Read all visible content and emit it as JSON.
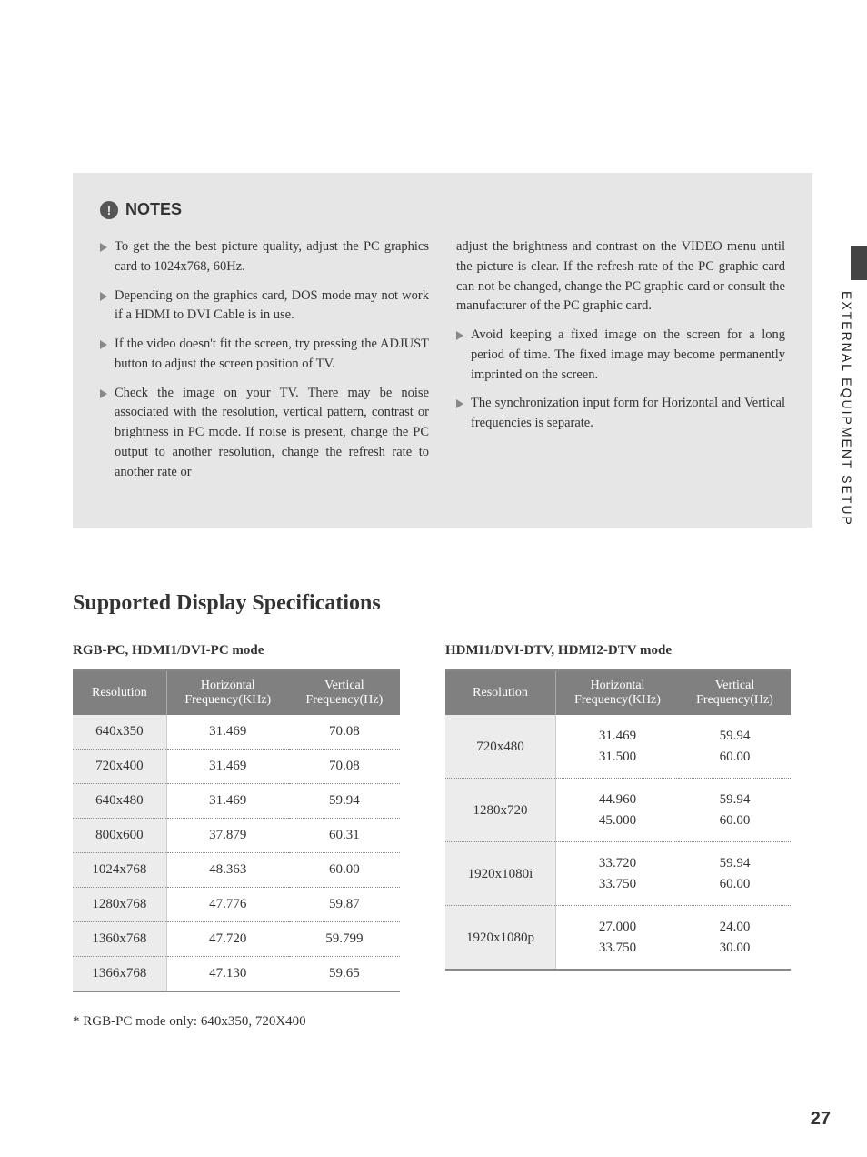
{
  "sideTab": "EXTERNAL EQUIPMENT SETUP",
  "pageNumber": "27",
  "notes": {
    "title": "NOTES",
    "left": [
      "To get the the best picture quality, adjust the PC graphics card to 1024x768, 60Hz.",
      "Depending on the graphics card, DOS mode may not work if a HDMI to DVI Cable is in use.",
      "If the video doesn't fit the screen, try pressing the ADJUST button to adjust the screen position of TV.",
      "Check the image on your TV. There may be noise associated with the resolution, vertical pattern, contrast or brightness in PC mode. If noise is present, change the PC output to another resolution, change the refresh rate to another rate or"
    ],
    "rightCont": "adjust the brightness and contrast on the VIDEO menu until the picture is clear. If the refresh rate of the PC graphic card can not be changed, change the PC graphic card or consult the manufacturer of the PC graphic card.",
    "right": [
      "Avoid keeping a fixed image on the screen for a long period of time. The fixed image may become permanently imprinted on the screen.",
      "The synchronization input form for Horizontal and Vertical frequencies is separate."
    ]
  },
  "sectionTitle": "Supported Display Specifications",
  "table1": {
    "label": "RGB-PC, HDMI1/DVI-PC mode",
    "columns": [
      "Resolution",
      "Horizontal\nFrequency(KHz)",
      "Vertical\nFrequency(Hz)"
    ],
    "rows": [
      [
        "640x350",
        "31.469",
        "70.08"
      ],
      [
        "720x400",
        "31.469",
        "70.08"
      ],
      [
        "640x480",
        "31.469",
        "59.94"
      ],
      [
        "800x600",
        "37.879",
        "60.31"
      ],
      [
        "1024x768",
        "48.363",
        "60.00"
      ],
      [
        "1280x768",
        "47.776",
        "59.87"
      ],
      [
        "1360x768",
        "47.720",
        "59.799"
      ],
      [
        "1366x768",
        "47.130",
        "59.65"
      ]
    ]
  },
  "table2": {
    "label": "HDMI1/DVI-DTV, HDMI2-DTV mode",
    "columns": [
      "Resolution",
      "Horizontal\nFrequency(KHz)",
      "Vertical\nFrequency(Hz)"
    ],
    "rows": [
      [
        "720x480",
        "31.469\n31.500",
        "59.94\n60.00"
      ],
      [
        "1280x720",
        "44.960\n45.000",
        "59.94\n60.00"
      ],
      [
        "1920x1080i",
        "33.720\n33.750",
        "59.94\n60.00"
      ],
      [
        "1920x1080p",
        "27.000\n33.750",
        "24.00\n30.00"
      ]
    ]
  },
  "footnote": "* RGB-PC mode only: 640x350, 720X400",
  "colors": {
    "notesBg": "#e6e6e6",
    "headerBg": "#808080",
    "resBg": "#ececec",
    "triangle": "#888888"
  }
}
